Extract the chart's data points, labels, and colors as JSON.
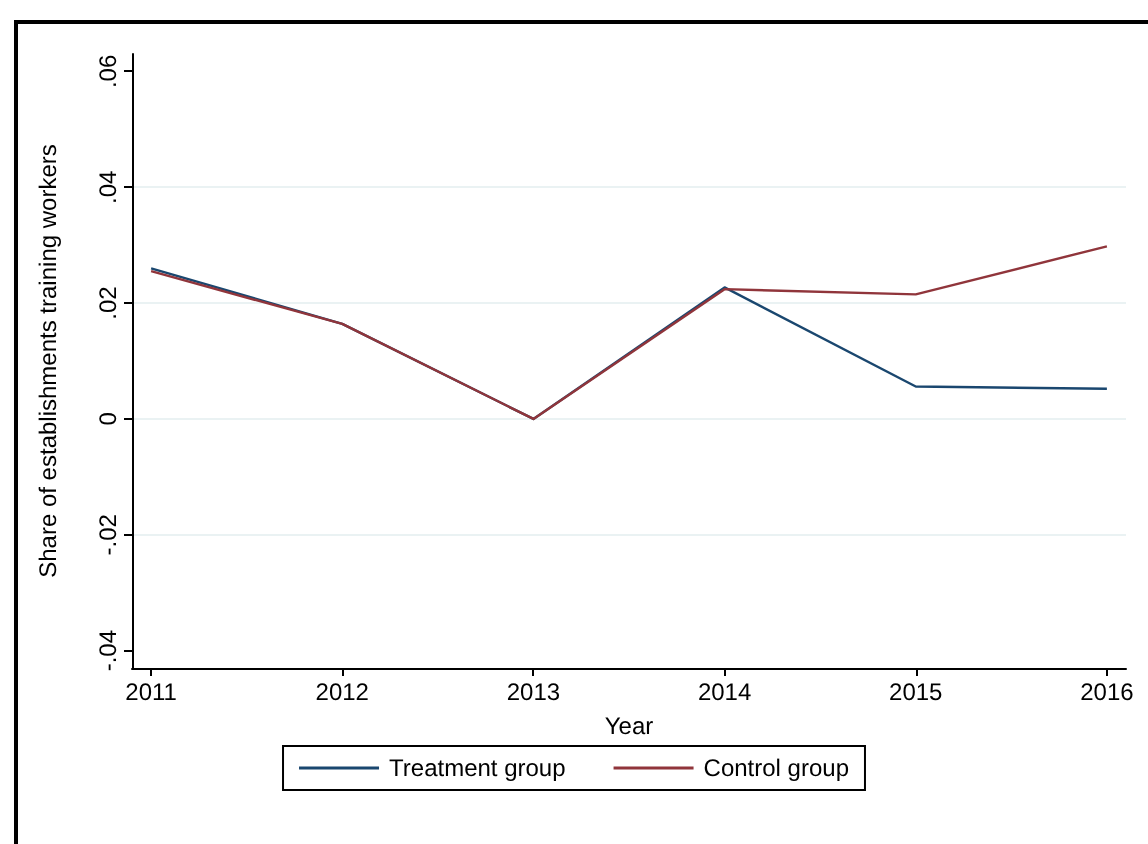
{
  "chart_data": {
    "type": "line",
    "xlabel": "Year",
    "ylabel": "Share of establishments training workers",
    "x": [
      2011,
      2012,
      2013,
      2014,
      2015,
      2016
    ],
    "series": [
      {
        "name": "Treatment group",
        "color": "#1a476f",
        "values": [
          0.026,
          0.0164,
          0,
          0.0227,
          0.0056,
          0.0052
        ]
      },
      {
        "name": "Control group",
        "color": "#90353b",
        "values": [
          0.0255,
          0.0164,
          0,
          0.0224,
          0.0215,
          0.0298
        ]
      }
    ],
    "xlim": [
      2010.9,
      2016.1
    ],
    "xticks": [
      2011,
      2012,
      2013,
      2014,
      2015,
      2016
    ],
    "ylim": [
      -0.043,
      0.063
    ],
    "yticks": [
      {
        "value": -0.04,
        "label": "-.04"
      },
      {
        "value": -0.02,
        "label": "-.02"
      },
      {
        "value": 0,
        "label": "0"
      },
      {
        "value": 0.02,
        "label": ".02"
      },
      {
        "value": 0.04,
        "label": ".04"
      },
      {
        "value": 0.06,
        "label": ".06"
      }
    ],
    "grid": "y",
    "legend": "bottom",
    "marker": "none",
    "line_style": "solid"
  }
}
